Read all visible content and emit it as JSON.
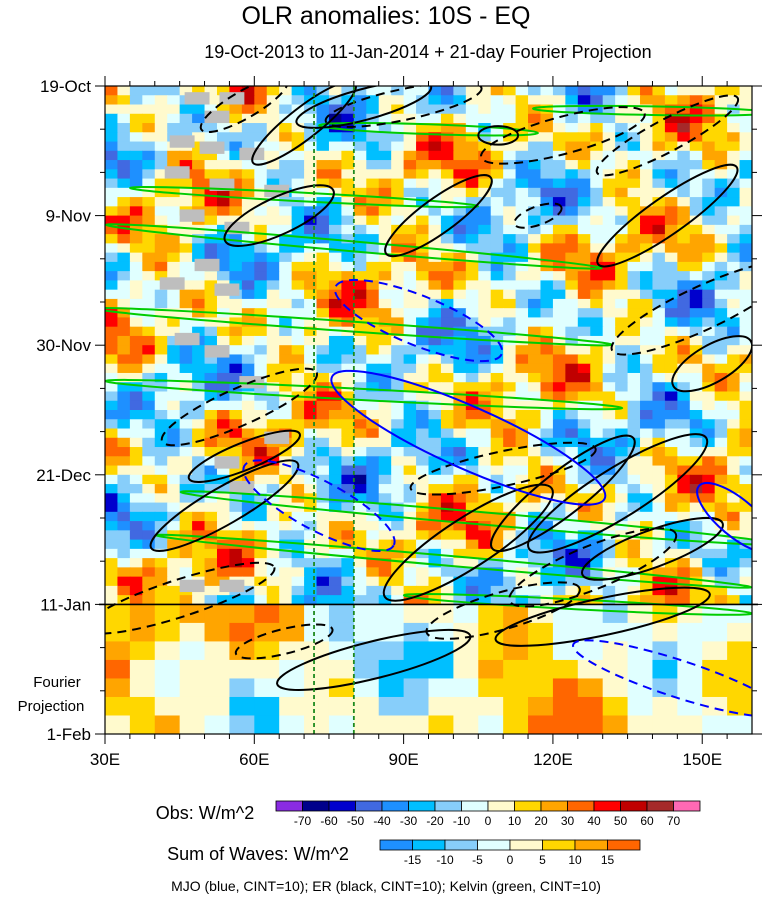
{
  "chart_data": {
    "type": "heatmap",
    "title": "OLR anomalies: 10S - EQ",
    "subtitle": "19-Oct-2013 to 11-Jan-2014 + 21-day Fourier Projection",
    "x_ticks": [
      {
        "value": 30,
        "label": "30E"
      },
      {
        "value": 60,
        "label": "60E"
      },
      {
        "value": 90,
        "label": "90E"
      },
      {
        "value": 120,
        "label": "120E"
      },
      {
        "value": 150,
        "label": "150E"
      }
    ],
    "xlim": [
      30,
      160
    ],
    "y_ticks": [
      {
        "day": 0,
        "label": "19-Oct"
      },
      {
        "day": 21,
        "label": "9-Nov"
      },
      {
        "day": 42,
        "label": "30-Nov"
      },
      {
        "day": 63,
        "label": "21-Dec"
      },
      {
        "day": 84,
        "label": "11-Jan"
      },
      {
        "day": 105,
        "label": "1-Feb"
      }
    ],
    "ylim_days": [
      0,
      105
    ],
    "observation_end_day": 84,
    "reference_lines_lon": [
      72,
      80
    ],
    "fourier_label": [
      "Fourier",
      "Projection"
    ],
    "obs_colorbar": {
      "title": "Obs: W/m^2",
      "levels": [
        "-70",
        "-60",
        "-50",
        "-40",
        "-30",
        "-20",
        "-10",
        "0",
        "10",
        "20",
        "30",
        "40",
        "50",
        "60",
        "70"
      ],
      "colors": [
        "#8a2be2",
        "#00008b",
        "#0000cd",
        "#4169e1",
        "#1e90ff",
        "#00bfff",
        "#87cefa",
        "#e0ffff",
        "#fffacd",
        "#ffd700",
        "#ffa500",
        "#ff6600",
        "#ff0000",
        "#c00000",
        "#a52a2a",
        "#ff69b4"
      ]
    },
    "waves_colorbar": {
      "title": "Sum of Waves: W/m^2",
      "levels": [
        "-15",
        "-10",
        "-5",
        "0",
        "5",
        "10",
        "15"
      ],
      "colors": [
        "#1e90ff",
        "#00bfff",
        "#87cefa",
        "#e0ffff",
        "#fffacd",
        "#ffd700",
        "#ffa500",
        "#ff6600"
      ]
    },
    "footer": "MJO (blue, CINT=10); ER (black, CINT=10); Kelvin (green, CINT=10)",
    "contours": {
      "mjo_color": "#0000ff",
      "er_color": "#000000",
      "kelvin_color": "#00cc00",
      "mjo": [
        {
          "lon": 93,
          "day": 38,
          "rx": 18,
          "ry": 4,
          "angle": 22,
          "dash": true
        },
        {
          "lon": 103,
          "day": 57,
          "rx": 30,
          "ry": 5,
          "angle": 24,
          "dash": false
        },
        {
          "lon": 73,
          "day": 68,
          "rx": 17,
          "ry": 4,
          "angle": 28,
          "dash": true
        },
        {
          "lon": 157,
          "day": 70,
          "rx": 10,
          "ry": 3,
          "angle": 40,
          "dash": false
        },
        {
          "lon": 145,
          "day": 96,
          "rx": 22,
          "ry": 3,
          "angle": 18,
          "dash": true
        }
      ],
      "er": [
        {
          "lon": 70,
          "day": 6,
          "rx": 13,
          "ry": 2.5,
          "angle": -38,
          "dash": false
        },
        {
          "lon": 58,
          "day": 3,
          "rx": 10,
          "ry": 2.2,
          "angle": -30,
          "dash": true
        },
        {
          "lon": 90,
          "day": 3,
          "rx": 16,
          "ry": 2.5,
          "angle": -12,
          "dash": true
        },
        {
          "lon": 82,
          "day": 3,
          "rx": 14,
          "ry": 2.5,
          "angle": -15,
          "dash": false
        },
        {
          "lon": 122,
          "day": 8,
          "rx": 17,
          "ry": 3,
          "angle": -15,
          "dash": true
        },
        {
          "lon": 109,
          "day": 8,
          "rx": 4,
          "ry": 1.5,
          "angle": 0,
          "dash": false
        },
        {
          "lon": 143,
          "day": 8,
          "rx": 16,
          "ry": 2.6,
          "angle": -28,
          "dash": true
        },
        {
          "lon": 143,
          "day": 21,
          "rx": 17,
          "ry": 3,
          "angle": -35,
          "dash": false
        },
        {
          "lon": 97,
          "day": 21,
          "rx": 13,
          "ry": 2.8,
          "angle": -36,
          "dash": false
        },
        {
          "lon": 65,
          "day": 21,
          "rx": 12,
          "ry": 3,
          "angle": -25,
          "dash": false
        },
        {
          "lon": 117,
          "day": 21,
          "rx": 5,
          "ry": 1.5,
          "angle": -20,
          "dash": true
        },
        {
          "lon": 150,
          "day": 36,
          "rx": 20,
          "ry": 3.5,
          "angle": -25,
          "dash": true
        },
        {
          "lon": 152,
          "day": 45,
          "rx": 9,
          "ry": 3,
          "angle": -30,
          "dash": false
        },
        {
          "lon": 57,
          "day": 52,
          "rx": 17,
          "ry": 3,
          "angle": -24,
          "dash": true
        },
        {
          "lon": 58,
          "day": 60,
          "rx": 12,
          "ry": 2.2,
          "angle": -22,
          "dash": false
        },
        {
          "lon": 110,
          "day": 62,
          "rx": 19,
          "ry": 2.8,
          "angle": -12,
          "dash": true
        },
        {
          "lon": 122,
          "day": 66,
          "rx": 18,
          "ry": 3.5,
          "angle": -38,
          "dash": false
        },
        {
          "lon": 133,
          "day": 66,
          "rx": 21,
          "ry": 4,
          "angle": -32,
          "dash": false
        },
        {
          "lon": 54,
          "day": 68,
          "rx": 17,
          "ry": 3,
          "angle": -30,
          "dash": false
        },
        {
          "lon": 103,
          "day": 74,
          "rx": 20,
          "ry": 4,
          "angle": -33,
          "dash": false
        },
        {
          "lon": 128,
          "day": 78,
          "rx": 18,
          "ry": 3.5,
          "angle": -22,
          "dash": true
        },
        {
          "lon": 140,
          "day": 75,
          "rx": 15,
          "ry": 3,
          "angle": -20,
          "dash": false
        },
        {
          "lon": 45,
          "day": 83,
          "rx": 20,
          "ry": 3,
          "angle": -18,
          "dash": true
        },
        {
          "lon": 110,
          "day": 85,
          "rx": 16,
          "ry": 3,
          "angle": -16,
          "dash": true
        },
        {
          "lon": 130,
          "day": 86,
          "rx": 22,
          "ry": 3,
          "angle": -12,
          "dash": false
        },
        {
          "lon": 84,
          "day": 93,
          "rx": 20,
          "ry": 3,
          "angle": -14,
          "dash": false
        },
        {
          "lon": 66,
          "day": 90,
          "rx": 10,
          "ry": 2,
          "angle": -14,
          "dash": true
        }
      ],
      "kelvin": [
        {
          "lon": 95,
          "day": 7,
          "rx": 22,
          "ry": 0.8,
          "angle": 2,
          "dash": false
        },
        {
          "lon": 140,
          "day": 4,
          "rx": 24,
          "ry": 0.7,
          "angle": 1,
          "dash": false
        },
        {
          "lon": 70,
          "day": 18,
          "rx": 35,
          "ry": 0.7,
          "angle": 3,
          "dash": false
        },
        {
          "lon": 80,
          "day": 26,
          "rx": 50,
          "ry": 0.8,
          "angle": 5,
          "dash": false
        },
        {
          "lon": 80,
          "day": 39,
          "rx": 52,
          "ry": 0.8,
          "angle": 4,
          "dash": false
        },
        {
          "lon": 82,
          "day": 50,
          "rx": 52,
          "ry": 0.9,
          "angle": 3,
          "dash": false
        },
        {
          "lon": 105,
          "day": 70,
          "rx": 60,
          "ry": 1,
          "angle": 5,
          "dash": false
        },
        {
          "lon": 100,
          "day": 77,
          "rx": 60,
          "ry": 0.8,
          "angle": 5,
          "dash": false
        },
        {
          "lon": 125,
          "day": 84,
          "rx": 35,
          "ry": 0.8,
          "angle": 3,
          "dash": false
        }
      ]
    }
  }
}
